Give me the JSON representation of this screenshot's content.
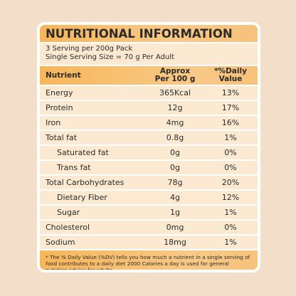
{
  "title": "NUTRITIONAL INFORMATION",
  "serving": {
    "line1": "3 Serving per 200g Pack",
    "line2": "Single Serving Size = 70 g Per Adult"
  },
  "table": {
    "headers": {
      "nutrient": "Nutrient",
      "approx_line1": "Approx",
      "approx_line2": "Per 100 g",
      "dv_line1": "*%Daily",
      "dv_line2": "Value"
    },
    "rows": [
      {
        "name": "Energy",
        "amount": "365Kcal",
        "dv": "13%"
      },
      {
        "name": "Protein",
        "amount": "12g",
        "dv": "17%"
      },
      {
        "name": "Iron",
        "amount": "4mg",
        "dv": "16%"
      },
      {
        "name": "Total fat",
        "amount": "0.8g",
        "dv": "1%"
      },
      {
        "name": "Saturated fat",
        "amount": "0g",
        "dv": "0%"
      },
      {
        "name": "Trans fat",
        "amount": "0g",
        "dv": "0%"
      },
      {
        "name": "Total Carbohydrates",
        "amount": "78g",
        "dv": "20%"
      },
      {
        "name": "Dietary Fiber",
        "amount": "4g",
        "dv": "12%"
      },
      {
        "name": "Sugar",
        "amount": "1g",
        "dv": "1%"
      },
      {
        "name": "Cholesterol",
        "amount": "0mg",
        "dv": "0%"
      },
      {
        "name": "Sodium",
        "amount": "18mg",
        "dv": "1%"
      }
    ]
  },
  "footnote": "* The % Daily Value (%DV) tells you how much a nutrient in a single serving of food contributes to a daily diet 2000 Calories a day is used for general nutation advice for adults.",
  "colors": {
    "background": "#f3dec9",
    "accent": "#f7b65a",
    "row_fill": "#fbe9d2"
  }
}
